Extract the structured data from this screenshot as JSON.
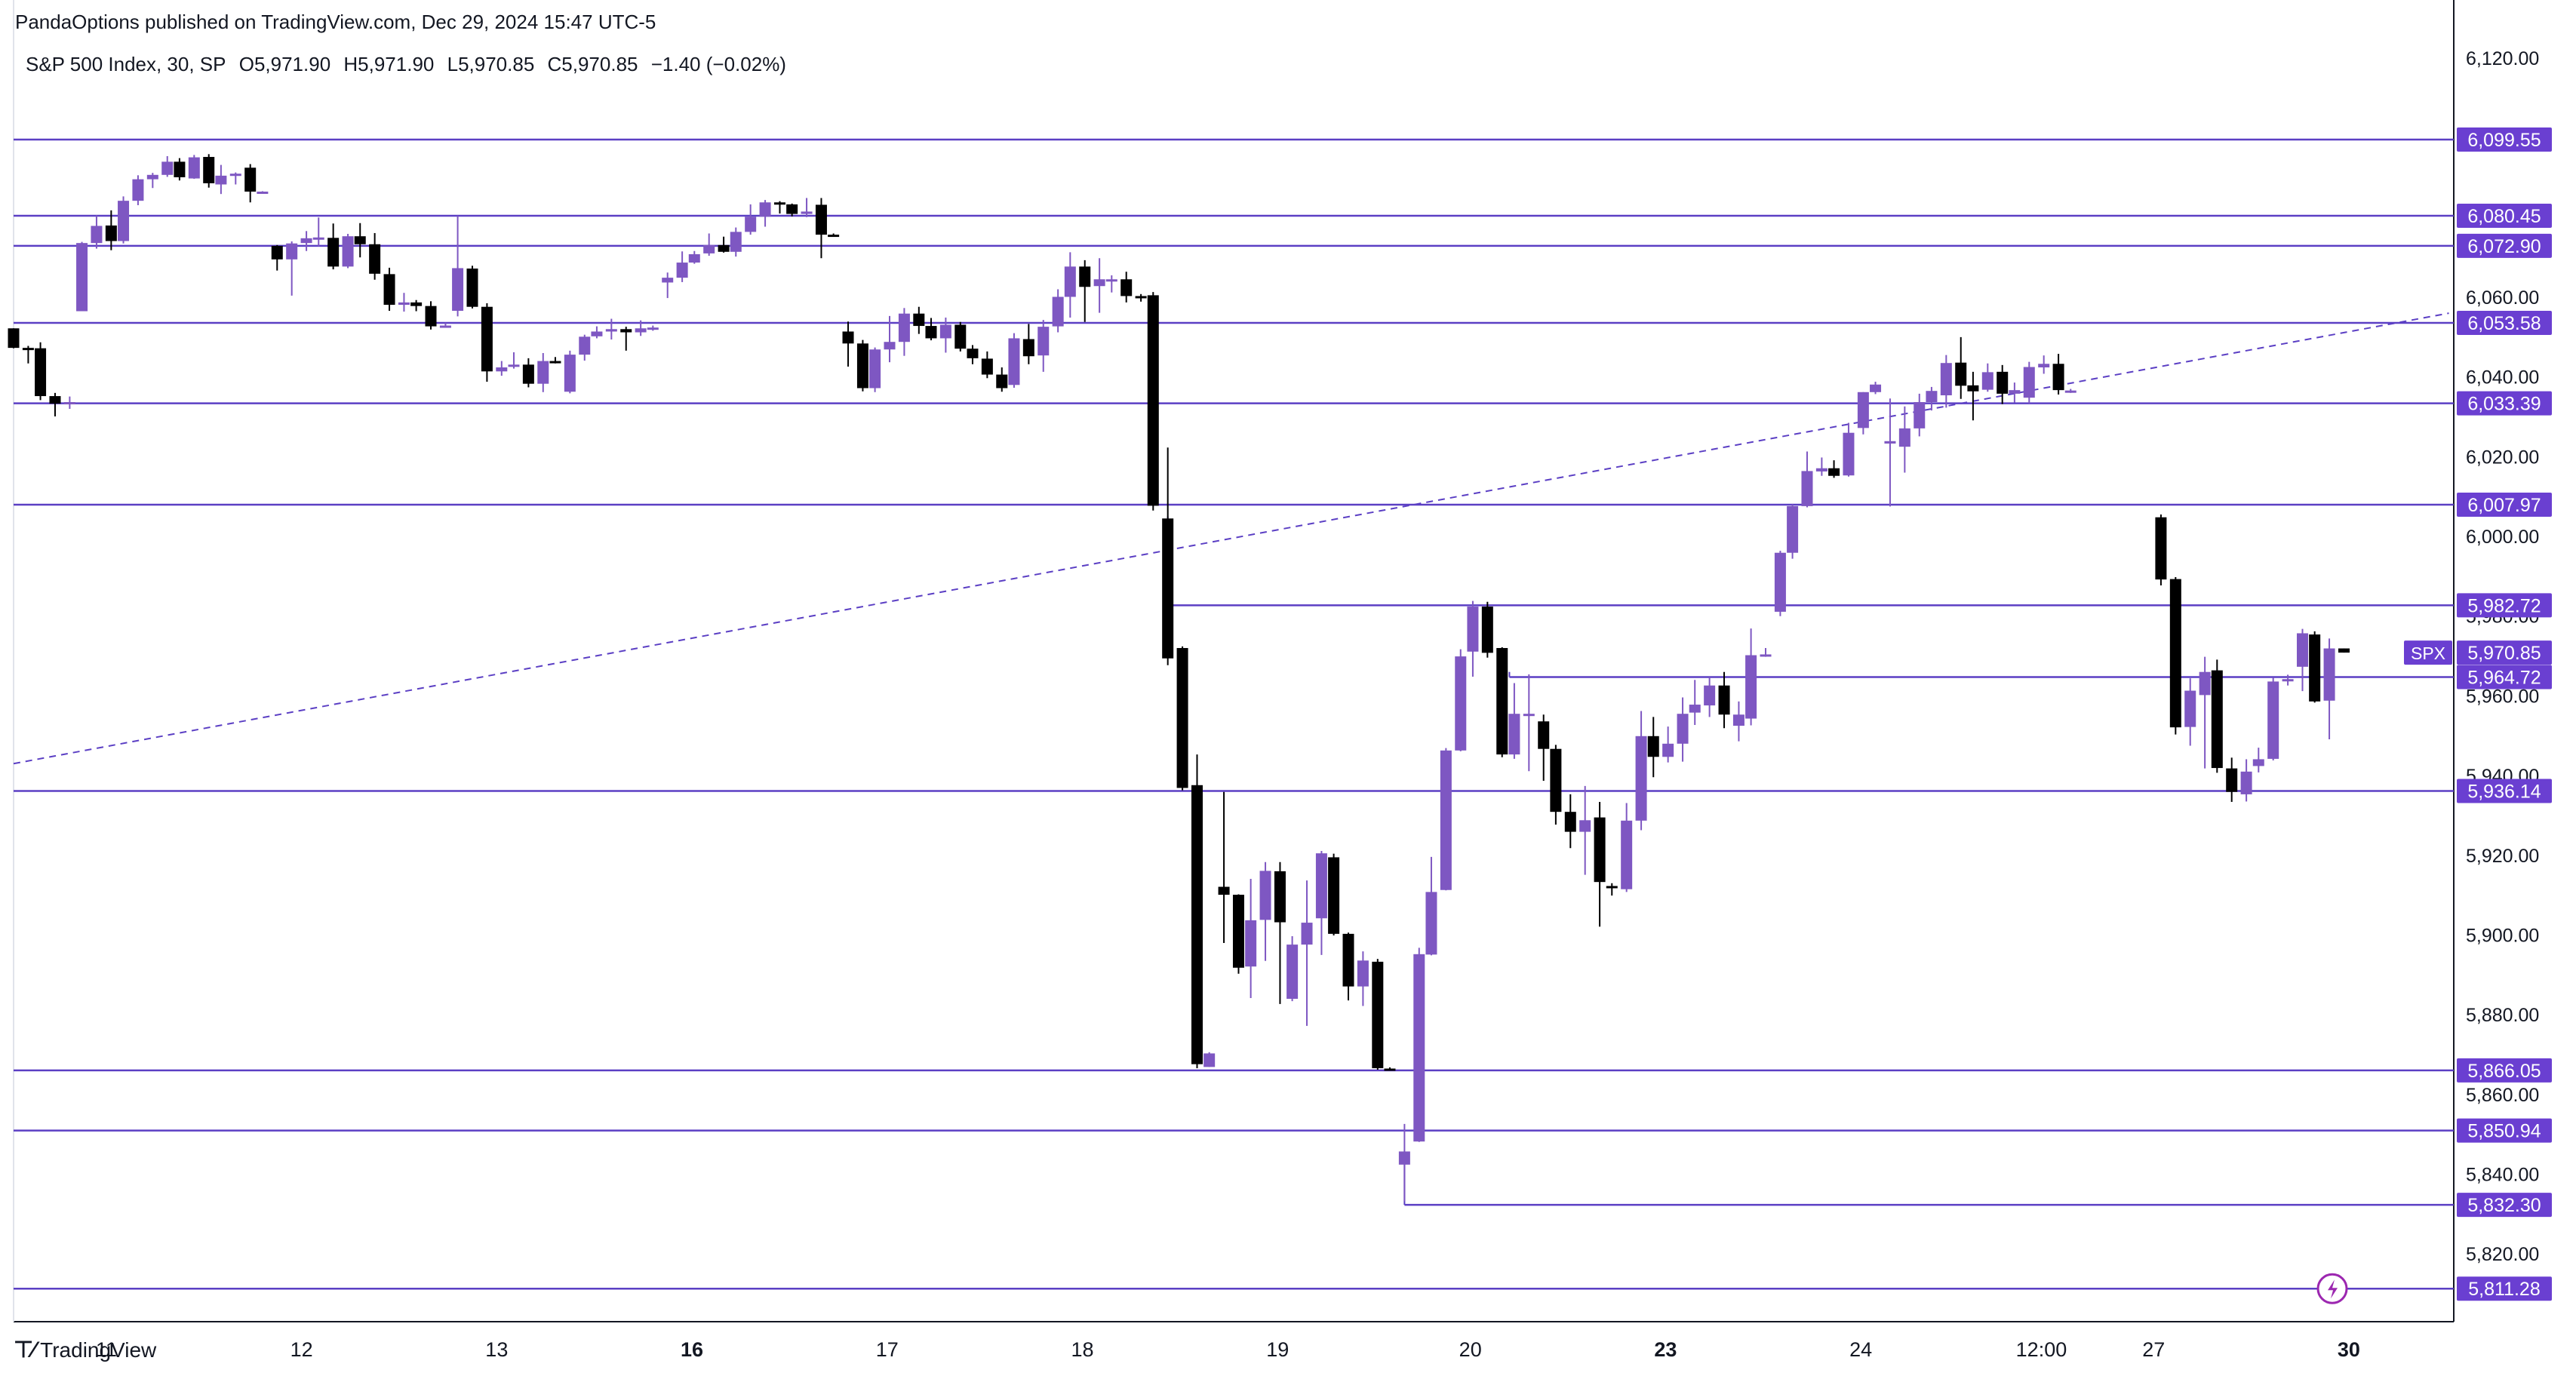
{
  "header": {
    "published_by": "PandaOptions published on TradingView.com, Dec 29, 2024 15:47 UTC-5"
  },
  "legend": {
    "symbol": "S&P 500 Index, 30, SP",
    "open": "O5,971.90",
    "high": "H5,971.90",
    "low": "L5,970.85",
    "close": "C5,970.85",
    "change": "−1.40 (−0.02%)"
  },
  "branding": {
    "name": "TradingView",
    "icon": "tradingview-logo-icon"
  },
  "colors": {
    "up": "#7e57c2",
    "down": "#000000",
    "level_line": "#5b3fc4",
    "label_bg": "#6a3fd1",
    "trend_line": "#5b3fc4",
    "text": "#131722"
  },
  "chart_data": {
    "type": "candlestick",
    "title": "S&P 500 Index, 30, SP",
    "symbol_tag": "SPX",
    "ylim": [
      5803,
      6127
    ],
    "y_ticks": [
      "6,120.00",
      "6,100.00",
      "6,080.00",
      "6,060.00",
      "6,040.00",
      "6,020.00",
      "6,000.00",
      "5,980.00",
      "5,960.00",
      "5,940.00",
      "5,920.00",
      "5,900.00",
      "5,880.00",
      "5,860.00",
      "5,840.00",
      "5,820.00"
    ],
    "x_labels": [
      {
        "label": "11",
        "bold": false,
        "pos": 0.038
      },
      {
        "label": "12",
        "bold": false,
        "pos": 0.118
      },
      {
        "label": "13",
        "bold": false,
        "pos": 0.198
      },
      {
        "label": "16",
        "bold": true,
        "pos": 0.278
      },
      {
        "label": "17",
        "bold": false,
        "pos": 0.358
      },
      {
        "label": "18",
        "bold": false,
        "pos": 0.438
      },
      {
        "label": "19",
        "bold": false,
        "pos": 0.518
      },
      {
        "label": "20",
        "bold": false,
        "pos": 0.597
      },
      {
        "label": "23",
        "bold": true,
        "pos": 0.677
      },
      {
        "label": "24",
        "bold": false,
        "pos": 0.757
      },
      {
        "label": "12:00",
        "bold": false,
        "pos": 0.831
      },
      {
        "label": "27",
        "bold": false,
        "pos": 0.877
      },
      {
        "label": "30",
        "bold": true,
        "pos": 0.957
      }
    ],
    "levels": [
      6099.55,
      6080.45,
      6072.9,
      6053.58,
      6033.39,
      6007.97,
      5982.72,
      5964.72,
      5936.14,
      5866.05,
      5850.94,
      5832.3,
      5811.28
    ],
    "level_labels": [
      "6,099.55",
      "6,080.45",
      "6,072.90",
      "6,053.58",
      "6,033.39",
      "6,007.97",
      "5,982.72",
      "5,964.72",
      "5,936.14",
      "5,866.05",
      "5,850.94",
      "5,832.30",
      "5,811.28"
    ],
    "last_price": 5970.85,
    "last_price_label": "5,970.85",
    "trendline": {
      "start": [
        0.0,
        5943.0
      ],
      "end": [
        0.998,
        6056.0
      ]
    },
    "candles": [
      [
        0.0,
        6052.2,
        6052.2,
        6047.2,
        6047.3
      ],
      [
        0.006,
        6047.3,
        6047.8,
        6043.4,
        6047.2
      ],
      [
        0.011,
        6047.2,
        6048.7,
        6034.2,
        6035.2
      ],
      [
        0.017,
        6035.2,
        6036.0,
        6030.1,
        6033.3
      ],
      [
        0.023,
        6033.3,
        6035.1,
        6032.0,
        6033.7
      ],
      [
        0.028,
        6056.5,
        6073.9,
        6056.5,
        6073.6
      ],
      [
        0.034,
        6073.6,
        6080.5,
        6072.2,
        6077.9
      ],
      [
        0.04,
        6078.0,
        6081.8,
        6071.8,
        6074.1
      ],
      [
        0.045,
        6074.1,
        6085.3,
        6073.5,
        6084.2
      ],
      [
        0.051,
        6084.2,
        6090.6,
        6083.1,
        6089.6
      ],
      [
        0.057,
        6089.6,
        6091.2,
        6087.4,
        6090.7
      ],
      [
        0.063,
        6090.7,
        6095.4,
        6090.2,
        6094.0
      ],
      [
        0.068,
        6094.0,
        6094.9,
        6089.3,
        6090.1
      ],
      [
        0.074,
        6089.8,
        6095.7,
        6089.7,
        6095.1
      ],
      [
        0.08,
        6095.2,
        6095.9,
        6087.5,
        6088.6
      ],
      [
        0.085,
        6088.3,
        6093.2,
        6085.9,
        6090.5
      ],
      [
        0.091,
        6090.5,
        6091.3,
        6088.3,
        6091.0
      ],
      [
        0.097,
        6092.5,
        6093.4,
        6083.8,
        6086.5
      ],
      [
        0.102,
        6086.4,
        6086.6,
        6086.4,
        6086.5
      ],
      [
        0.108,
        6072.9,
        6073.1,
        6066.7,
        6069.5
      ],
      [
        0.114,
        6069.5,
        6074.0,
        6060.4,
        6073.5
      ],
      [
        0.12,
        6073.6,
        6076.6,
        6071.6,
        6074.8
      ],
      [
        0.125,
        6074.8,
        6080.0,
        6072.8,
        6075.0
      ],
      [
        0.131,
        6074.9,
        6078.5,
        6067.0,
        6067.7
      ],
      [
        0.137,
        6067.7,
        6075.9,
        6067.3,
        6075.3
      ],
      [
        0.142,
        6075.3,
        6078.6,
        6070.0,
        6073.3
      ],
      [
        0.148,
        6073.3,
        6076.1,
        6064.4,
        6065.9
      ],
      [
        0.154,
        6065.8,
        6067.4,
        6056.6,
        6058.1
      ],
      [
        0.16,
        6058.1,
        6061.1,
        6056.4,
        6058.7
      ],
      [
        0.165,
        6058.7,
        6059.3,
        6056.5,
        6057.8
      ],
      [
        0.171,
        6057.8,
        6059.0,
        6051.9,
        6052.7
      ],
      [
        0.177,
        6052.7,
        6053.6,
        6052.5,
        6052.9
      ],
      [
        0.182,
        6056.6,
        6080.4,
        6055.2,
        6067.3
      ],
      [
        0.188,
        6067.2,
        6067.9,
        6057.2,
        6057.6
      ],
      [
        0.194,
        6057.6,
        6058.5,
        6038.8,
        6041.4
      ],
      [
        0.2,
        6041.4,
        6044.0,
        6040.3,
        6042.4
      ],
      [
        0.205,
        6042.6,
        6046.2,
        6042.1,
        6043.1
      ],
      [
        0.211,
        6043.1,
        6044.7,
        6037.4,
        6038.3
      ],
      [
        0.217,
        6038.3,
        6046.0,
        6036.2,
        6044.0
      ],
      [
        0.222,
        6044.0,
        6045.0,
        6043.4,
        6043.6
      ],
      [
        0.228,
        6036.3,
        6046.6,
        6035.9,
        6045.6
      ],
      [
        0.234,
        6045.6,
        6050.6,
        6044.1,
        6050.1
      ],
      [
        0.239,
        6050.2,
        6052.7,
        6049.7,
        6051.4
      ],
      [
        0.245,
        6051.4,
        6054.6,
        6049.4,
        6052.0
      ],
      [
        0.251,
        6052.0,
        6052.6,
        6046.6,
        6051.2
      ],
      [
        0.257,
        6051.2,
        6054.2,
        6050.3,
        6052.2
      ],
      [
        0.262,
        6051.9,
        6052.9,
        6051.6,
        6052.4
      ],
      [
        0.268,
        6063.7,
        6066.2,
        6059.8,
        6064.9
      ],
      [
        0.274,
        6064.9,
        6071.5,
        6063.8,
        6068.7
      ],
      [
        0.279,
        6068.7,
        6071.6,
        6068.4,
        6070.8
      ],
      [
        0.285,
        6071.0,
        6076.0,
        6070.4,
        6073.1
      ],
      [
        0.291,
        6073.1,
        6075.2,
        6071.2,
        6071.4
      ],
      [
        0.296,
        6071.4,
        6077.5,
        6070.2,
        6076.4
      ],
      [
        0.302,
        6076.4,
        6083.3,
        6075.7,
        6080.2
      ],
      [
        0.308,
        6080.2,
        6084.4,
        6077.7,
        6083.8
      ],
      [
        0.314,
        6083.8,
        6084.1,
        6081.0,
        6083.5
      ],
      [
        0.319,
        6083.3,
        6083.5,
        6080.3,
        6080.9
      ],
      [
        0.325,
        6080.9,
        6084.9,
        6080.1,
        6081.5
      ],
      [
        0.331,
        6083.2,
        6084.9,
        6069.8,
        6075.7
      ],
      [
        0.336,
        6075.7,
        6076.0,
        6075.3,
        6075.3
      ],
      [
        0.342,
        6051.4,
        6053.9,
        6042.6,
        6048.4
      ],
      [
        0.348,
        6048.4,
        6049.3,
        6036.4,
        6037.2
      ],
      [
        0.353,
        6037.2,
        6047.4,
        6036.2,
        6046.9
      ],
      [
        0.359,
        6046.9,
        6055.3,
        6043.7,
        6048.8
      ],
      [
        0.365,
        6048.8,
        6057.3,
        6045.3,
        6055.9
      ],
      [
        0.371,
        6055.9,
        6057.6,
        6050.8,
        6052.8
      ],
      [
        0.376,
        6052.8,
        6054.8,
        6049.2,
        6049.7
      ],
      [
        0.382,
        6049.7,
        6054.9,
        6046.1,
        6053.1
      ],
      [
        0.388,
        6053.1,
        6053.8,
        6046.4,
        6047.1
      ],
      [
        0.393,
        6047.1,
        6048.0,
        6043.2,
        6044.7
      ],
      [
        0.399,
        6044.6,
        6046.4,
        6039.7,
        6040.6
      ],
      [
        0.405,
        6040.6,
        6042.4,
        6036.3,
        6037.2
      ],
      [
        0.41,
        6038.0,
        6051.0,
        6037.3,
        6049.7
      ],
      [
        0.416,
        6049.5,
        6053.3,
        6043.2,
        6045.2
      ],
      [
        0.422,
        6045.4,
        6054.3,
        6041.3,
        6052.6
      ],
      [
        0.428,
        6052.7,
        6062.0,
        6051.2,
        6060.1
      ],
      [
        0.433,
        6060.1,
        6071.3,
        6054.9,
        6067.7
      ],
      [
        0.439,
        6067.7,
        6069.3,
        6053.8,
        6062.6
      ],
      [
        0.445,
        6062.8,
        6069.8,
        6056.1,
        6064.5
      ],
      [
        0.45,
        6064.4,
        6065.5,
        6061.2,
        6064.5
      ],
      [
        0.456,
        6064.5,
        6066.4,
        6058.7,
        6060.3
      ],
      [
        0.462,
        6060.3,
        6060.8,
        6058.9,
        6060.0
      ],
      [
        0.467,
        6060.5,
        6061.3,
        6006.5,
        6007.7
      ],
      [
        0.473,
        6004.5,
        6022.3,
        5967.7,
        5969.4
      ],
      [
        0.479,
        5972.0,
        5972.4,
        5936.3,
        5936.9
      ],
      [
        0.485,
        5937.6,
        5945.3,
        5866.6,
        5867.6
      ],
      [
        0.49,
        5866.9,
        5870.6,
        5866.9,
        5870.3
      ],
      [
        0.496,
        5912.1,
        5935.9,
        5898.0,
        5910.1
      ],
      [
        0.502,
        5910.1,
        5910.2,
        5890.3,
        5891.8
      ],
      [
        0.507,
        5892.1,
        5914.1,
        5884.2,
        5903.7
      ],
      [
        0.513,
        5903.8,
        5918.3,
        5893.5,
        5916.1
      ],
      [
        0.519,
        5916.0,
        5918.3,
        5882.7,
        5903.2
      ],
      [
        0.524,
        5884.0,
        5899.7,
        5883.4,
        5897.6
      ],
      [
        0.53,
        5897.6,
        5913.7,
        5877.2,
        5903.1
      ],
      [
        0.536,
        5904.2,
        5921.1,
        5895.0,
        5920.5
      ],
      [
        0.541,
        5919.5,
        5920.4,
        5899.9,
        5900.3
      ],
      [
        0.547,
        5900.3,
        5900.6,
        5883.6,
        5887.1
      ],
      [
        0.553,
        5887.1,
        5895.9,
        5882.2,
        5893.6
      ],
      [
        0.559,
        5893.3,
        5894.0,
        5866.2,
        5866.6
      ],
      [
        0.564,
        5866.5,
        5866.8,
        5866.0,
        5866.2
      ],
      [
        0.57,
        5842.4,
        5852.6,
        5833.2,
        5845.7
      ],
      [
        0.576,
        5848.2,
        5896.8,
        5848.1,
        5895.2
      ],
      [
        0.581,
        5895.1,
        5919.6,
        5894.9,
        5910.8
      ],
      [
        0.587,
        5911.3,
        5946.9,
        5911.2,
        5946.3
      ],
      [
        0.593,
        5946.3,
        5971.7,
        5946.1,
        5969.9
      ],
      [
        0.598,
        5971.1,
        5983.8,
        5964.8,
        5982.4
      ],
      [
        0.604,
        5982.4,
        5983.6,
        5969.6,
        5970.8
      ],
      [
        0.61,
        5972.0,
        5972.2,
        5944.6,
        5945.3
      ],
      [
        0.615,
        5945.3,
        5963.2,
        5944.2,
        5955.5
      ],
      [
        0.621,
        5955.3,
        5965.4,
        5941.1,
        5955.5
      ],
      [
        0.627,
        5953.6,
        5955.3,
        5938.7,
        5946.7
      ],
      [
        0.632,
        5946.7,
        5947.7,
        5927.7,
        5930.9
      ],
      [
        0.638,
        5930.9,
        5935.3,
        5921.8,
        5925.9
      ],
      [
        0.644,
        5925.9,
        5937.4,
        5915.1,
        5928.8
      ],
      [
        0.65,
        5929.5,
        5933.4,
        5902.1,
        5913.3
      ],
      [
        0.655,
        5912.3,
        5913.0,
        5909.9,
        5911.9
      ],
      [
        0.661,
        5911.5,
        5933.1,
        5910.8,
        5928.7
      ],
      [
        0.667,
        5928.7,
        5956.2,
        5926.3,
        5949.9
      ],
      [
        0.672,
        5949.9,
        5954.7,
        5939.6,
        5944.7
      ],
      [
        0.678,
        5944.7,
        5952.3,
        5943.3,
        5948.0
      ],
      [
        0.684,
        5948.0,
        5959.6,
        5943.5,
        5955.5
      ],
      [
        0.689,
        5955.8,
        5964.0,
        5952.7,
        5957.8
      ],
      [
        0.695,
        5957.6,
        5964.7,
        5954.7,
        5962.6
      ],
      [
        0.701,
        5962.6,
        5966.0,
        5951.9,
        5955.3
      ],
      [
        0.707,
        5952.5,
        5958.6,
        5948.6,
        5955.3
      ],
      [
        0.712,
        5954.3,
        5976.9,
        5952.6,
        5970.2
      ],
      [
        0.718,
        5970.3,
        5972.0,
        5969.8,
        5970.4
      ],
      [
        0.724,
        5981.1,
        5996.4,
        5980.0,
        5995.9
      ],
      [
        0.729,
        5995.9,
        6008.0,
        5994.4,
        6007.6
      ],
      [
        0.735,
        6007.6,
        6021.3,
        6007.3,
        6016.4
      ],
      [
        0.741,
        6016.3,
        6019.8,
        6015.2,
        6017.1
      ],
      [
        0.746,
        6017.1,
        6019.1,
        6014.7,
        6015.2
      ],
      [
        0.752,
        6015.3,
        6028.5,
        6015.0,
        6026.0
      ],
      [
        0.758,
        6027.2,
        6036.2,
        6025.6,
        6036.2
      ],
      [
        0.763,
        6036.2,
        6038.8,
        6035.7,
        6038.1
      ],
      [
        0.769,
        6023.3,
        6034.6,
        6007.5,
        6023.9
      ],
      [
        0.775,
        6022.5,
        6032.6,
        6016.0,
        6027.1
      ],
      [
        0.781,
        6027.1,
        6035.8,
        6025.1,
        6033.7
      ],
      [
        0.786,
        6033.7,
        6037.5,
        6031.6,
        6036.5
      ],
      [
        0.792,
        6035.4,
        6045.5,
        6032.3,
        6043.5
      ],
      [
        0.798,
        6043.6,
        6050.0,
        6034.5,
        6037.8
      ],
      [
        0.803,
        6037.9,
        6041.3,
        6029.1,
        6036.4
      ],
      [
        0.809,
        6036.8,
        6043.4,
        6036.3,
        6041.2
      ],
      [
        0.815,
        6041.3,
        6043.0,
        6033.2,
        6035.8
      ],
      [
        0.82,
        6035.8,
        6038.6,
        6033.6,
        6036.7
      ],
      [
        0.826,
        6034.8,
        6043.8,
        6033.4,
        6042.5
      ],
      [
        0.832,
        6042.4,
        6045.4,
        6040.8,
        6043.3
      ],
      [
        0.838,
        6043.3,
        6045.8,
        6035.6,
        6036.7
      ],
      [
        0.843,
        6036.4,
        6037.0,
        6036.0,
        6036.6
      ],
      [
        0.88,
        6004.8,
        6005.5,
        5987.7,
        5989.2
      ],
      [
        0.886,
        5989.3,
        5989.8,
        5950.3,
        5952.1
      ],
      [
        0.892,
        5952.2,
        5964.4,
        5947.5,
        5961.3
      ],
      [
        0.898,
        5960.2,
        5969.8,
        5941.8,
        5966.0
      ],
      [
        0.903,
        5966.4,
        5969.1,
        5940.7,
        5941.9
      ],
      [
        0.909,
        5941.8,
        5944.5,
        5933.4,
        5935.9
      ],
      [
        0.915,
        5935.3,
        5944.1,
        5933.5,
        5941.0
      ],
      [
        0.92,
        5942.4,
        5947.0,
        5940.8,
        5944.1
      ],
      [
        0.926,
        5944.2,
        5964.6,
        5943.8,
        5963.6
      ],
      [
        0.932,
        5963.7,
        5965.3,
        5962.6,
        5964.2
      ],
      [
        0.938,
        5967.3,
        5976.8,
        5961.2,
        5975.7
      ],
      [
        0.943,
        5975.4,
        5976.2,
        5958.3,
        5958.6
      ],
      [
        0.949,
        5958.8,
        5974.4,
        5949.1,
        5971.9
      ],
      [
        0.955,
        5971.9,
        5971.9,
        5970.85,
        5970.85
      ]
    ]
  }
}
